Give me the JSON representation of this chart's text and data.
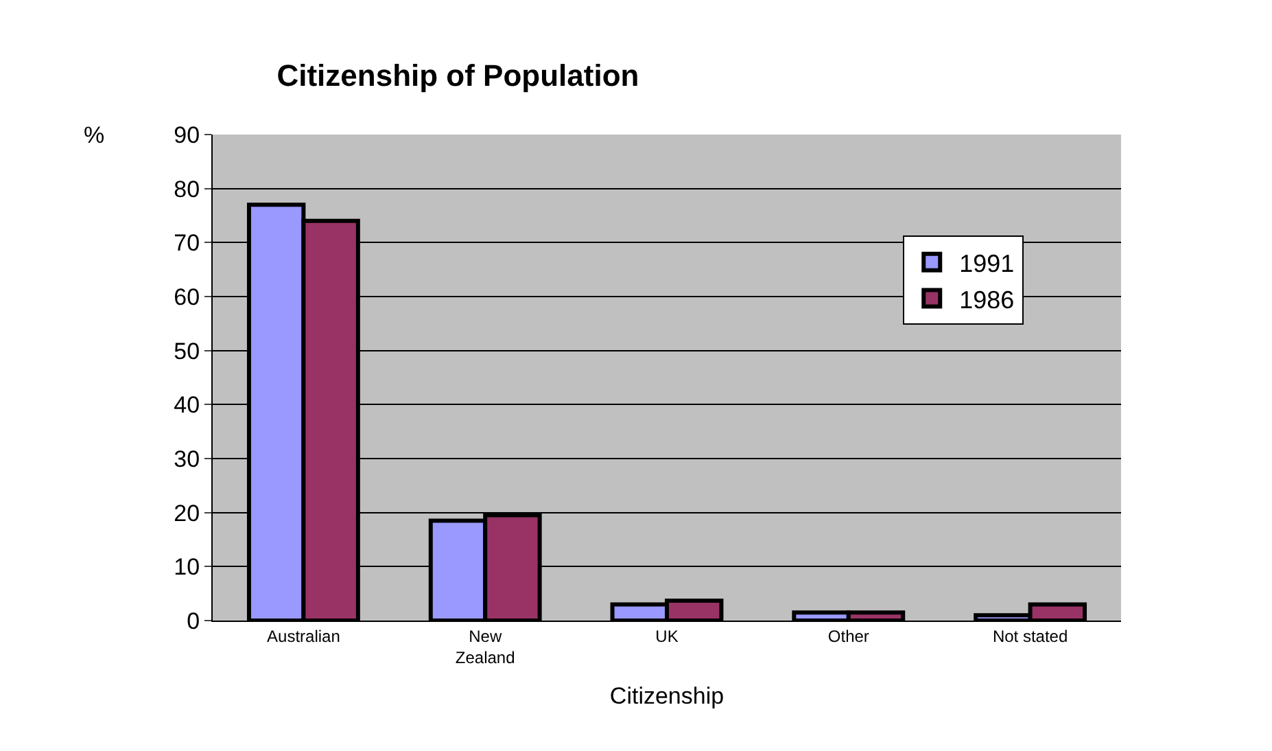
{
  "chart_data": {
    "type": "bar",
    "title": "Citizenship of Population",
    "xlabel": "Citizenship",
    "ylabel": "%",
    "categories": [
      "Australian",
      "New Zealand",
      "UK",
      "Other",
      "Not stated"
    ],
    "series": [
      {
        "name": "1991",
        "color": "#9999ff",
        "values": [
          77,
          18.5,
          3,
          1.5,
          1
        ]
      },
      {
        "name": "1986",
        "color": "#993366",
        "values": [
          74,
          19.5,
          3.7,
          1.5,
          3
        ]
      }
    ],
    "ylim": [
      0,
      90
    ],
    "yticks": [
      0,
      10,
      20,
      30,
      40,
      50,
      60,
      70,
      80,
      90
    ],
    "grid": "y",
    "legend": "right"
  }
}
